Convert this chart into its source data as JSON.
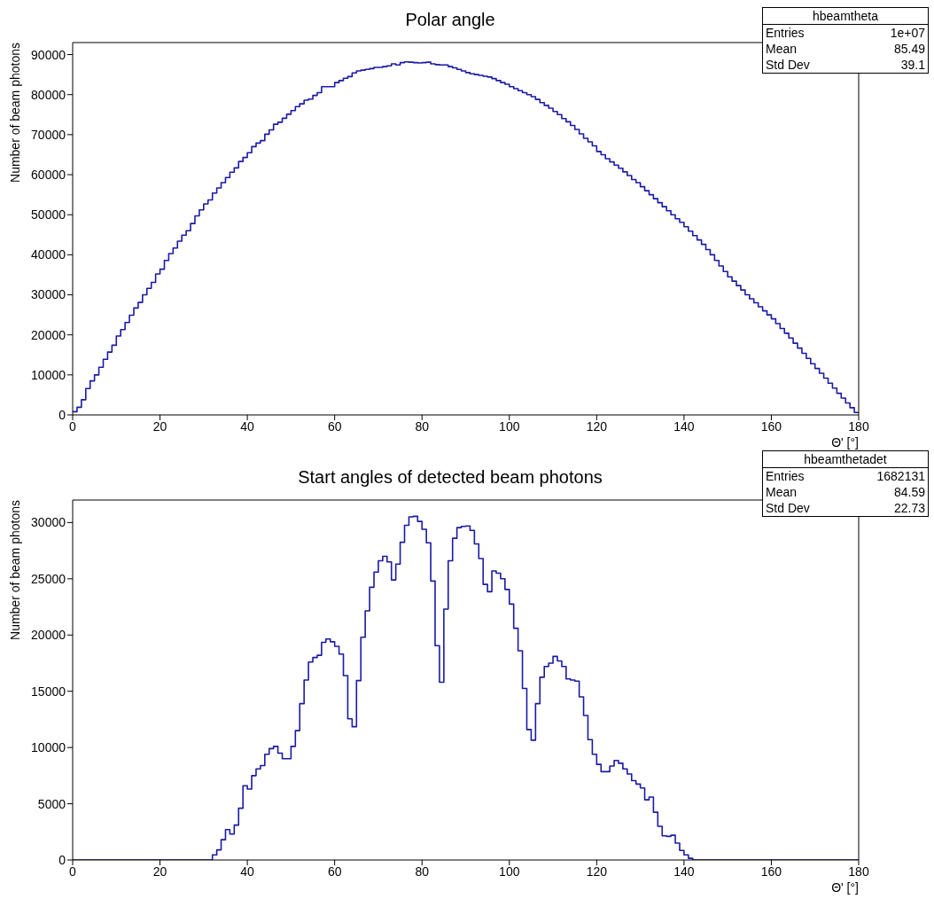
{
  "chart_data": [
    {
      "type": "histogram",
      "title": "Polar angle",
      "xlabel": "Θ' [°]",
      "ylabel": "Number of beam photons",
      "color": "#1a1aa6",
      "xlim": [
        0,
        180
      ],
      "xticks": [
        0,
        20,
        40,
        60,
        80,
        100,
        120,
        140,
        160,
        180
      ],
      "ylim": [
        0,
        93000
      ],
      "yticks": [
        0,
        10000,
        20000,
        30000,
        40000,
        50000,
        60000,
        70000,
        80000,
        90000
      ],
      "bins": [
        0,
        1,
        2,
        3,
        4,
        5,
        6,
        7,
        8,
        9,
        10,
        11,
        12,
        13,
        14,
        15,
        16,
        17,
        18,
        19,
        20,
        21,
        22,
        23,
        24,
        25,
        26,
        27,
        28,
        29,
        30,
        31,
        32,
        33,
        34,
        35,
        36,
        37,
        38,
        39,
        40,
        41,
        42,
        43,
        44,
        45,
        46,
        47,
        48,
        49,
        50,
        51,
        52,
        53,
        54,
        55,
        56,
        57,
        58,
        59,
        60,
        61,
        62,
        63,
        64,
        65,
        66,
        67,
        68,
        69,
        70,
        71,
        72,
        73,
        74,
        75,
        76,
        77,
        78,
        79,
        80,
        81,
        82,
        83,
        84,
        85,
        86,
        87,
        88,
        89,
        90,
        91,
        92,
        93,
        94,
        95,
        96,
        97,
        98,
        99,
        100,
        101,
        102,
        103,
        104,
        105,
        106,
        107,
        108,
        109,
        110,
        111,
        112,
        113,
        114,
        115,
        116,
        117,
        118,
        119,
        120,
        121,
        122,
        123,
        124,
        125,
        126,
        127,
        128,
        129,
        130,
        131,
        132,
        133,
        134,
        135,
        136,
        137,
        138,
        139,
        140,
        141,
        142,
        143,
        144,
        145,
        146,
        147,
        148,
        149,
        150,
        151,
        152,
        153,
        154,
        155,
        156,
        157,
        158,
        159,
        160,
        161,
        162,
        163,
        164,
        165,
        166,
        167,
        168,
        169,
        170,
        171,
        172,
        173,
        174,
        175,
        176,
        177,
        178,
        179,
        180
      ],
      "values": [
        800,
        1900,
        3800,
        6600,
        8500,
        10000,
        11900,
        13900,
        15700,
        17400,
        19700,
        21300,
        23100,
        24900,
        26700,
        28100,
        30000,
        31600,
        33100,
        35200,
        36400,
        38600,
        40300,
        41700,
        43400,
        44900,
        46000,
        47800,
        49700,
        51200,
        52700,
        53700,
        55400,
        56700,
        58000,
        59300,
        60600,
        61700,
        63300,
        64300,
        65500,
        67000,
        67900,
        68500,
        70100,
        71200,
        72600,
        73100,
        74100,
        75100,
        76000,
        77000,
        77700,
        78600,
        78900,
        79800,
        80500,
        82000,
        82000,
        82000,
        83000,
        83500,
        84100,
        84500,
        85400,
        85900,
        86100,
        86300,
        86500,
        86800,
        86800,
        87000,
        87200,
        87700,
        87400,
        88000,
        88200,
        88100,
        88000,
        87900,
        88000,
        88100,
        87700,
        87500,
        87400,
        87400,
        87000,
        86700,
        86300,
        85900,
        85500,
        85200,
        85000,
        84800,
        84600,
        84400,
        84000,
        83500,
        83000,
        82600,
        82000,
        81500,
        81000,
        80500,
        80000,
        79500,
        78800,
        78000,
        77300,
        76600,
        75800,
        75000,
        74000,
        73200,
        72300,
        71300,
        70200,
        69100,
        68200,
        67200,
        65800,
        65000,
        64000,
        63200,
        62400,
        61600,
        60700,
        59800,
        58800,
        58000,
        57000,
        56000,
        55000,
        54000,
        53000,
        52000,
        51000,
        50000,
        49000,
        48100,
        47000,
        45900,
        44800,
        43700,
        42600,
        41300,
        40000,
        38600,
        37200,
        35800,
        34500,
        33400,
        32300,
        31200,
        30000,
        29000,
        28000,
        27000,
        26000,
        25000,
        24000,
        22800,
        21600,
        20400,
        19200,
        17900,
        16700,
        15400,
        14100,
        12800,
        11600,
        10400,
        9200,
        7900,
        6700,
        5400,
        4200,
        3000,
        1800,
        600
      ],
      "annotations": [
        "hbeamtheta",
        "Entries",
        "1e+07",
        "Mean",
        "85.49",
        "Std Dev",
        "39.1"
      ]
    },
    {
      "type": "histogram",
      "title": "Start angles of detected beam photons",
      "xlabel": "Θ' [°]",
      "ylabel": "Number of beam photons",
      "color": "#1a1aa6",
      "xlim": [
        0,
        180
      ],
      "xticks": [
        0,
        20,
        40,
        60,
        80,
        100,
        120,
        140,
        160,
        180
      ],
      "ylim": [
        0,
        32000
      ],
      "yticks": [
        0,
        5000,
        10000,
        15000,
        20000,
        25000,
        30000
      ],
      "bins": [
        0,
        1,
        2,
        3,
        4,
        5,
        6,
        7,
        8,
        9,
        10,
        11,
        12,
        13,
        14,
        15,
        16,
        17,
        18,
        19,
        20,
        21,
        22,
        23,
        24,
        25,
        26,
        27,
        28,
        29,
        30,
        31,
        32,
        33,
        34,
        35,
        36,
        37,
        38,
        39,
        40,
        41,
        42,
        43,
        44,
        45,
        46,
        47,
        48,
        49,
        50,
        51,
        52,
        53,
        54,
        55,
        56,
        57,
        58,
        59,
        60,
        61,
        62,
        63,
        64,
        65,
        66,
        67,
        68,
        69,
        70,
        71,
        72,
        73,
        74,
        75,
        76,
        77,
        78,
        79,
        80,
        81,
        82,
        83,
        84,
        85,
        86,
        87,
        88,
        89,
        90,
        91,
        92,
        93,
        94,
        95,
        96,
        97,
        98,
        99,
        100,
        101,
        102,
        103,
        104,
        105,
        106,
        107,
        108,
        109,
        110,
        111,
        112,
        113,
        114,
        115,
        116,
        117,
        118,
        119,
        120,
        121,
        122,
        123,
        124,
        125,
        126,
        127,
        128,
        129,
        130,
        131,
        132,
        133,
        134,
        135,
        136,
        137,
        138,
        139,
        140,
        141,
        142,
        143,
        144,
        145,
        146,
        147,
        148,
        149,
        150,
        151,
        152,
        153,
        154,
        155,
        156,
        157,
        158,
        159,
        160,
        161,
        162,
        163,
        164,
        165,
        166,
        167,
        168,
        169,
        170,
        171,
        172,
        173,
        174,
        175,
        176,
        177,
        178,
        179,
        180
      ],
      "values": [
        0,
        0,
        0,
        0,
        0,
        0,
        0,
        0,
        0,
        0,
        0,
        0,
        0,
        0,
        0,
        0,
        0,
        0,
        0,
        0,
        0,
        0,
        0,
        0,
        0,
        0,
        0,
        0,
        0,
        0,
        0,
        0,
        450,
        900,
        1800,
        2700,
        2300,
        3100,
        4600,
        6600,
        6300,
        7500,
        8100,
        8400,
        9400,
        9900,
        10100,
        9500,
        9000,
        9000,
        10100,
        11500,
        13900,
        16000,
        17600,
        18000,
        18200,
        19350,
        19650,
        19400,
        19000,
        18300,
        16400,
        12550,
        11850,
        15950,
        19800,
        22150,
        24250,
        25600,
        26600,
        27000,
        26500,
        24900,
        26300,
        28250,
        29750,
        30500,
        30550,
        30100,
        29400,
        28200,
        24800,
        19050,
        15800,
        22300,
        26600,
        28600,
        29550,
        29650,
        29700,
        29300,
        28100,
        26800,
        24500,
        23850,
        25700,
        25500,
        25000,
        24050,
        22750,
        20600,
        18600,
        15250,
        11600,
        10650,
        13900,
        16250,
        17200,
        17500,
        18100,
        17700,
        17200,
        16100,
        16000,
        15900,
        14500,
        12850,
        10700,
        9400,
        8500,
        7850,
        7850,
        8350,
        8850,
        8600,
        8100,
        7650,
        7050,
        6750,
        6400,
        5350,
        5600,
        4250,
        3000,
        2150,
        2100,
        2200,
        1500,
        850,
        450,
        150,
        0,
        0,
        0,
        0,
        0,
        0,
        0,
        0,
        0,
        0,
        0,
        0,
        0,
        0,
        0,
        0,
        0,
        0,
        0,
        0,
        0,
        0,
        0,
        0,
        0,
        0,
        0,
        0,
        0,
        0,
        0,
        0,
        0,
        0,
        0,
        0,
        0,
        0
      ],
      "annotations": [
        "hbeamthetadet",
        "Entries",
        "1682131",
        "Mean",
        "84.59",
        "Std Dev",
        "22.73"
      ]
    }
  ]
}
